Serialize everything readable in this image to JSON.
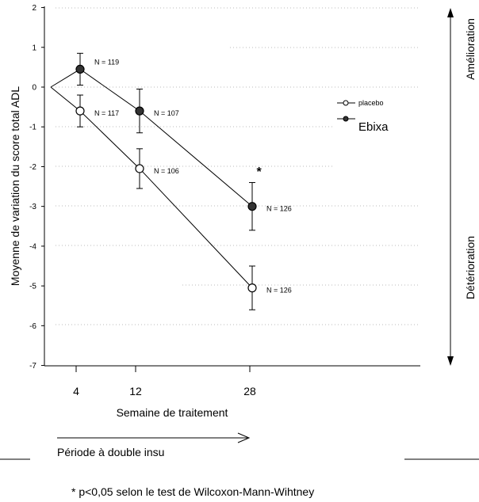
{
  "chart_data": {
    "type": "line",
    "title": "",
    "xlabel": "Semaine de traitement",
    "ylabel": "Moyenne de variation du score total ADL",
    "x_ticks": [
      4,
      12,
      28
    ],
    "y_ticks": [
      2,
      1,
      0,
      -1,
      -2,
      -3,
      -4,
      -5,
      -6,
      -7
    ],
    "ylim": [
      -7,
      2
    ],
    "grid": false,
    "legend_position": "right",
    "series": [
      {
        "name": "Ebixa",
        "marker": "filled",
        "points": [
          {
            "x": 0,
            "y": 0
          },
          {
            "x": 4,
            "y": 0.45,
            "err": 0.4,
            "n_label": "N = 119"
          },
          {
            "x": 12,
            "y": -0.6,
            "err": 0.55,
            "n_label": "N = 107"
          },
          {
            "x": 28,
            "y": -3.0,
            "err": 0.6,
            "n_label": "N = 126"
          }
        ]
      },
      {
        "name": "placebo",
        "marker": "open",
        "points": [
          {
            "x": 0,
            "y": 0
          },
          {
            "x": 4,
            "y": -0.6,
            "err": 0.4,
            "n_label": "N = 117"
          },
          {
            "x": 12,
            "y": -2.05,
            "err": 0.5,
            "n_label": "N = 106"
          },
          {
            "x": 28,
            "y": -5.05,
            "err": 0.55,
            "n_label": "N = 126"
          }
        ]
      }
    ],
    "significance_marker": "*",
    "side_labels": {
      "top": "Amélioration",
      "bottom": "Détérioration"
    }
  },
  "period_label": "Période à double insu",
  "footnote": "* p<0,05 selon le test de Wilcoxon-Mann-Wihtney"
}
